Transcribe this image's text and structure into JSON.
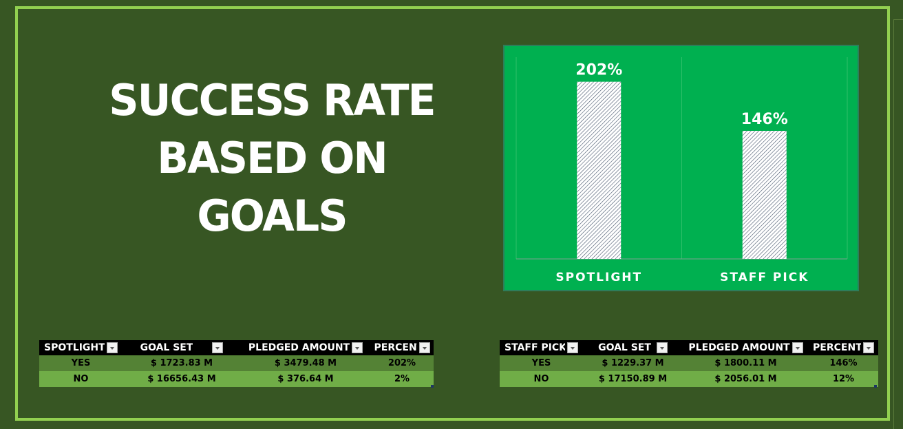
{
  "headline": [
    "SUCCESS RATE",
    "BASED ON",
    "GOALS"
  ],
  "chart_data": {
    "type": "bar",
    "categories": [
      "SPOTLIGHT",
      "STAFF PICK"
    ],
    "values": [
      202,
      146
    ],
    "data_labels": [
      "202%",
      "146%"
    ],
    "ylim": [
      0,
      230
    ],
    "grid": false,
    "legend": "none",
    "background": "#00b050",
    "bar_pattern": "diagonal-hatch",
    "bar_color": "#44546a"
  },
  "tables": [
    {
      "headers": [
        "SPOTLIGHT",
        "GOAL SET",
        "PLEDGED AMOUNT",
        "PERCENT"
      ],
      "rows": [
        [
          "YES",
          "$ 1723.83 M",
          "$ 3479.48 M",
          "202%"
        ],
        [
          "NO",
          "$ 16656.43 M",
          "$ 376.64 M",
          "2%"
        ]
      ]
    },
    {
      "headers": [
        "STAFF PICK",
        "GOAL SET",
        "PLEDGED AMOUNT",
        "PERCENT"
      ],
      "rows": [
        [
          "YES",
          "$ 1229.37 M",
          "$ 1800.11 M",
          "146%"
        ],
        [
          "NO",
          "$ 17150.89 M",
          "$ 2056.01 M",
          "12%"
        ]
      ]
    }
  ],
  "colors": {
    "background": "#375623",
    "border": "#92d050",
    "row_dark": "#548235",
    "row_light": "#70ad47",
    "header": "#000000"
  }
}
